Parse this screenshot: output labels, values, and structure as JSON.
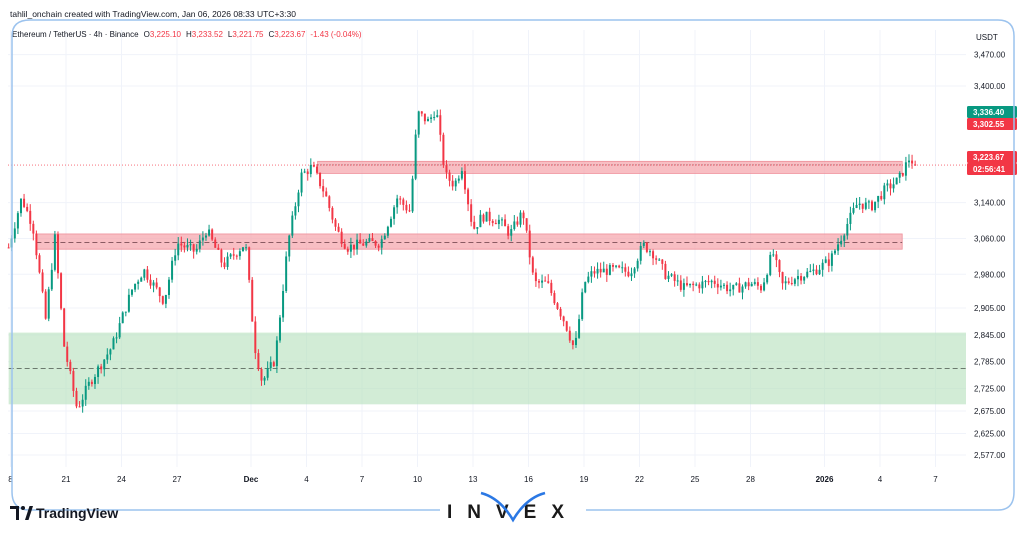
{
  "header": {
    "creator_line": "tahlil_onchain created with TradingView.com, Jan 06, 2026 08:33 UTC+3:30",
    "symbol": "Ethereum / TetherUS · 4h · Binance",
    "ohlc": [
      {
        "key": "O",
        "value": "3,225.10"
      },
      {
        "key": "H",
        "value": "3,233.52"
      },
      {
        "key": "L",
        "value": "3,221.75"
      },
      {
        "key": "C",
        "value": "3,223.67"
      }
    ],
    "change": "-1.43 (-0.04%)"
  },
  "currency_label": "USDT",
  "price_tags": [
    {
      "label": "3,336.40",
      "value": 3336.4,
      "color": "#089981"
    },
    {
      "label": "3,302.55",
      "value": 3302.55,
      "color": "#f23645"
    },
    {
      "label": "3,223.67",
      "value": 3223.67,
      "color": "#f23645"
    },
    {
      "label": "02:56:41",
      "value": null,
      "color": "#f23645"
    }
  ],
  "branding": {
    "tradingview": "TradingView",
    "invex": "INVEX"
  },
  "colors": {
    "up": "#089981",
    "down": "#f23645",
    "resistance": "#f5a3aa",
    "support": "#b7e1bd",
    "frame": "#9cc3ee"
  },
  "chart_data": {
    "type": "candlestick",
    "interval": "4h",
    "grid": true,
    "ylim": [
      2560,
      3470
    ],
    "y_ticks": [
      {
        "label": "3,470.00",
        "value": 3470
      },
      {
        "label": "3,400.00",
        "value": 3400
      },
      {
        "label": "3,140.00",
        "value": 3140
      },
      {
        "label": "3,060.00",
        "value": 3060
      },
      {
        "label": "2,980.00",
        "value": 2980
      },
      {
        "label": "2,905.00",
        "value": 2905
      },
      {
        "label": "2,845.00",
        "value": 2845
      },
      {
        "label": "2,785.00",
        "value": 2785
      },
      {
        "label": "2,725.00",
        "value": 2725
      },
      {
        "label": "2,675.00",
        "value": 2675
      },
      {
        "label": "2,625.00",
        "value": 2625
      },
      {
        "label": "2,577.00",
        "value": 2577
      }
    ],
    "x_ticks": [
      {
        "label": "8",
        "day": 18
      },
      {
        "label": "21",
        "day": 21
      },
      {
        "label": "24",
        "day": 24
      },
      {
        "label": "27",
        "day": 27
      },
      {
        "label": "Dec",
        "day": 31,
        "bold": true
      },
      {
        "label": "4",
        "day": 34
      },
      {
        "label": "7",
        "day": 37
      },
      {
        "label": "10",
        "day": 40
      },
      {
        "label": "13",
        "day": 43
      },
      {
        "label": "16",
        "day": 46
      },
      {
        "label": "19",
        "day": 49
      },
      {
        "label": "22",
        "day": 52
      },
      {
        "label": "25",
        "day": 55
      },
      {
        "label": "28",
        "day": 58
      },
      {
        "label": "2026",
        "day": 62,
        "bold": true
      },
      {
        "label": "4",
        "day": 65
      },
      {
        "label": "7",
        "day": 68
      }
    ],
    "zones": [
      {
        "type": "resistance",
        "from": 3205,
        "to": 3232,
        "start_day": 34.6,
        "end_day": 66.2,
        "mid": 3224,
        "mid_style": "dotted"
      },
      {
        "type": "resistance",
        "from": 3036,
        "to": 3070,
        "start_day": 19.4,
        "end_day": 66.2,
        "mid": 3051,
        "mid_style": "dashed"
      },
      {
        "type": "support",
        "from": 2690,
        "to": 2850,
        "start_day": 17.9,
        "end_day": 70.0,
        "mid": 2770,
        "mid_style": "dashed"
      }
    ],
    "current_price_line": 3223.67,
    "anchors": [
      {
        "day": 17.9,
        "price": 3040
      },
      {
        "day": 18.6,
        "price": 3150
      },
      {
        "day": 19.2,
        "price": 3090
      },
      {
        "day": 19.9,
        "price": 2880
      },
      {
        "day": 20.4,
        "price": 3060
      },
      {
        "day": 20.9,
        "price": 2820
      },
      {
        "day": 21.6,
        "price": 2680
      },
      {
        "day": 22.3,
        "price": 2740
      },
      {
        "day": 23.5,
        "price": 2820
      },
      {
        "day": 24.6,
        "price": 2950
      },
      {
        "day": 25.2,
        "price": 2990
      },
      {
        "day": 26.3,
        "price": 2920
      },
      {
        "day": 27.0,
        "price": 3050
      },
      {
        "day": 28.0,
        "price": 3030
      },
      {
        "day": 28.6,
        "price": 3080
      },
      {
        "day": 29.5,
        "price": 3000
      },
      {
        "day": 30.7,
        "price": 3050
      },
      {
        "day": 31.2,
        "price": 2820
      },
      {
        "day": 31.6,
        "price": 2740
      },
      {
        "day": 32.3,
        "price": 2790
      },
      {
        "day": 33.0,
        "price": 3050
      },
      {
        "day": 33.7,
        "price": 3200
      },
      {
        "day": 34.3,
        "price": 3220
      },
      {
        "day": 35.0,
        "price": 3160
      },
      {
        "day": 35.6,
        "price": 3080
      },
      {
        "day": 36.2,
        "price": 3040
      },
      {
        "day": 37.2,
        "price": 3050
      },
      {
        "day": 38.0,
        "price": 3050
      },
      {
        "day": 38.9,
        "price": 3150
      },
      {
        "day": 39.6,
        "price": 3120
      },
      {
        "day": 40.0,
        "price": 3340
      },
      {
        "day": 40.6,
        "price": 3320
      },
      {
        "day": 41.0,
        "price": 3350
      },
      {
        "day": 41.5,
        "price": 3200
      },
      {
        "day": 42.0,
        "price": 3180
      },
      {
        "day": 42.4,
        "price": 3220
      },
      {
        "day": 43.0,
        "price": 3080
      },
      {
        "day": 43.5,
        "price": 3110
      },
      {
        "day": 44.4,
        "price": 3100
      },
      {
        "day": 45.0,
        "price": 3070
      },
      {
        "day": 45.7,
        "price": 3120
      },
      {
        "day": 46.3,
        "price": 2960
      },
      {
        "day": 47.0,
        "price": 2960
      },
      {
        "day": 48.0,
        "price": 2870
      },
      {
        "day": 48.5,
        "price": 2810
      },
      {
        "day": 49.0,
        "price": 2960
      },
      {
        "day": 49.5,
        "price": 2985
      },
      {
        "day": 50.6,
        "price": 2990
      },
      {
        "day": 51.5,
        "price": 2985
      },
      {
        "day": 52.2,
        "price": 3045
      },
      {
        "day": 52.7,
        "price": 3030
      },
      {
        "day": 53.4,
        "price": 2980
      },
      {
        "day": 54.4,
        "price": 2950
      },
      {
        "day": 55.0,
        "price": 2955
      },
      {
        "day": 56.0,
        "price": 2965
      },
      {
        "day": 57.0,
        "price": 2945
      },
      {
        "day": 58.0,
        "price": 2960
      },
      {
        "day": 58.6,
        "price": 2950
      },
      {
        "day": 59.2,
        "price": 3030
      },
      {
        "day": 59.7,
        "price": 2955
      },
      {
        "day": 60.5,
        "price": 2975
      },
      {
        "day": 61.3,
        "price": 2985
      },
      {
        "day": 62.3,
        "price": 3010
      },
      {
        "day": 63.2,
        "price": 3090
      },
      {
        "day": 63.8,
        "price": 3140
      },
      {
        "day": 64.5,
        "price": 3130
      },
      {
        "day": 65.3,
        "price": 3170
      },
      {
        "day": 66.0,
        "price": 3190
      },
      {
        "day": 66.6,
        "price": 3240
      },
      {
        "day": 66.9,
        "price": 3224
      }
    ]
  }
}
